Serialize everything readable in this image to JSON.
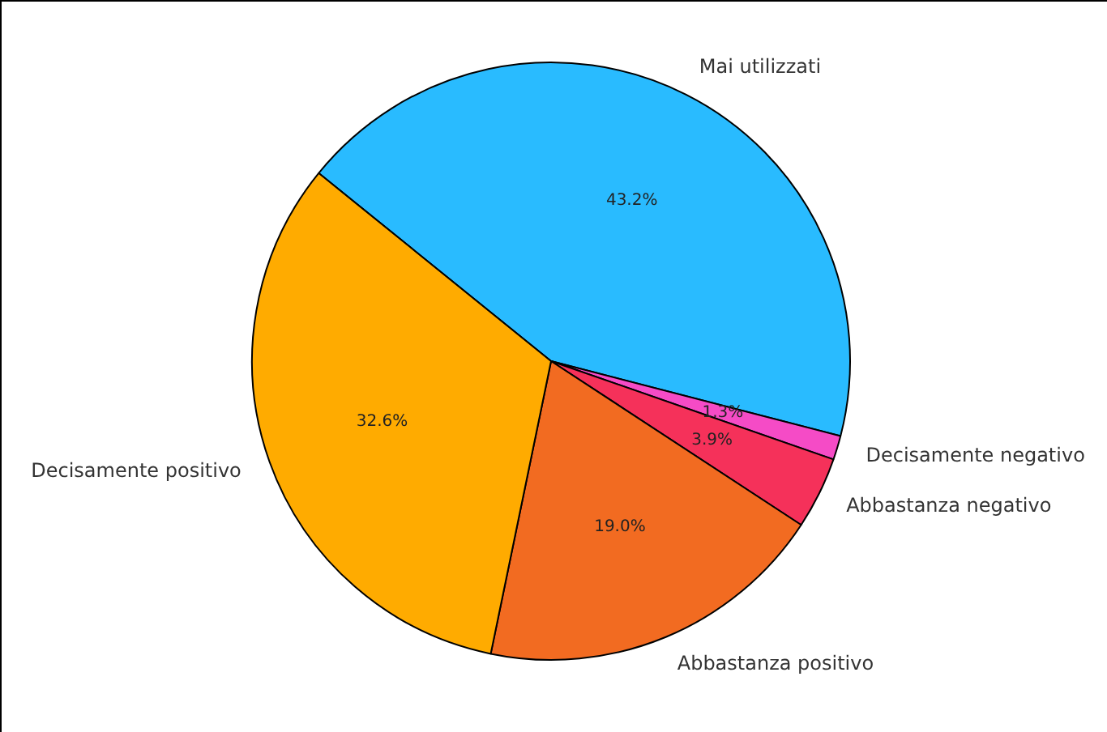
{
  "chart_data": {
    "type": "pie",
    "categories": [
      "Mai utilizzati",
      "Decisamente negativo",
      "Abbastanza negativo",
      "Abbastanza positivo",
      "Decisamente positivo"
    ],
    "values": [
      43.2,
      1.3,
      3.9,
      19.0,
      32.6
    ],
    "colors": [
      "#29bbff",
      "#f54bc6",
      "#f5315a",
      "#f26b21",
      "#ffab00"
    ],
    "value_labels": [
      "43.2%",
      "1.3%",
      "3.9%",
      "19.0%",
      "32.6%"
    ],
    "legend": false
  }
}
